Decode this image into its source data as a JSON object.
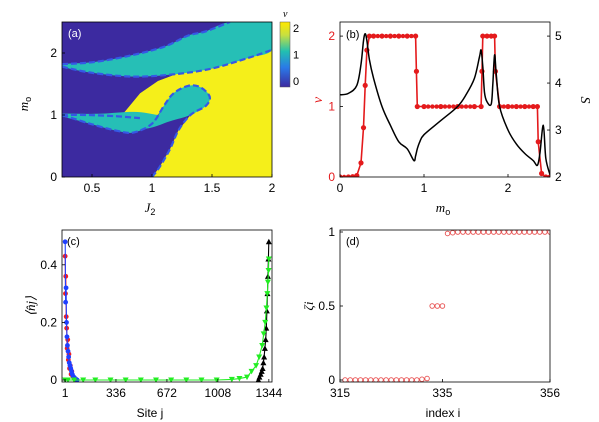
{
  "chart_data": [
    {
      "type": "heatmap",
      "panel_label": "(a)",
      "xlabel_main": "J",
      "xlabel_sub": "2",
      "ylabel_main": "m",
      "ylabel_sub": "o",
      "xlim": [
        0.25,
        2.0
      ],
      "ylim": [
        0,
        2.5
      ],
      "xticks": [
        0.5,
        1,
        1.5,
        2
      ],
      "xtick_labels": [
        "0.5",
        "1",
        "1.5",
        "2"
      ],
      "yticks": [
        0,
        1,
        2
      ],
      "ytick_labels": [
        "0",
        "1",
        "2"
      ],
      "colorbar": {
        "label": "ν",
        "ticks": [
          0,
          1,
          2
        ],
        "tick_labels": [
          "0",
          "1",
          "2"
        ],
        "colors": [
          "#3c2aa0",
          "#2aa0e8",
          "#22c0b0",
          "#ffe800"
        ]
      },
      "phase_colors": {
        "0": "#3c2aa0",
        "1": "#26bfb6",
        "2": "#f5ef1a"
      },
      "boundary_color": "#3558e6",
      "lower_region_nu1": [
        [
          0.85,
          0.72
        ],
        [
          1.0,
          0.86
        ],
        [
          1.1,
          1.15
        ],
        [
          1.18,
          1.35
        ],
        [
          1.3,
          1.47
        ],
        [
          1.4,
          1.45
        ],
        [
          1.48,
          1.3
        ],
        [
          1.45,
          1.15
        ],
        [
          1.32,
          1.0
        ],
        [
          1.22,
          0.75
        ],
        [
          1.15,
          0.45
        ],
        [
          1.06,
          0.15
        ],
        [
          1.0,
          0.0
        ]
      ],
      "lower_left_boundary": [
        [
          0.25,
          1.0
        ],
        [
          0.5,
          0.85
        ],
        [
          0.72,
          0.74
        ],
        [
          0.85,
          0.72
        ]
      ],
      "upper_region_nu1": [
        [
          0.25,
          1.78
        ],
        [
          0.5,
          1.68
        ],
        [
          0.85,
          1.62
        ],
        [
          1.2,
          1.66
        ],
        [
          1.5,
          1.75
        ],
        [
          1.8,
          1.92
        ],
        [
          2.0,
          2.05
        ],
        [
          2.0,
          2.5
        ],
        [
          1.65,
          2.5
        ],
        [
          1.45,
          2.35
        ],
        [
          1.3,
          2.28
        ],
        [
          1.1,
          2.1
        ],
        [
          0.8,
          1.95
        ],
        [
          0.5,
          1.85
        ],
        [
          0.25,
          1.82
        ]
      ]
    },
    {
      "type": "line",
      "panel_label": "(b)",
      "xlabel_main": "m",
      "xlabel_sub": "o",
      "ylabel_left": "ν",
      "ylabel_right": "S",
      "xlim": [
        0,
        2.5
      ],
      "ylim_left": [
        0,
        2.2
      ],
      "ylim_right": [
        2,
        5.3
      ],
      "xticks": [
        0,
        1,
        2
      ],
      "xtick_labels": [
        "0",
        "1",
        "2"
      ],
      "yticks_left": [
        0,
        1,
        2
      ],
      "ytick_labels_left": [
        "0",
        "1",
        "2"
      ],
      "yticks_right": [
        2,
        3,
        4,
        5
      ],
      "ytick_labels_right": [
        "2",
        "3",
        "4",
        "5"
      ],
      "series": [
        {
          "axis": "left",
          "color": "#e41a1c",
          "marker": "dot",
          "x": [
            0.0,
            0.1,
            0.2,
            0.25,
            0.28,
            0.3,
            0.32,
            0.35,
            0.4,
            0.5,
            0.6,
            0.7,
            0.8,
            0.9,
            0.91,
            0.92,
            1.0,
            1.2,
            1.4,
            1.6,
            1.68,
            1.69,
            1.7,
            1.75,
            1.8,
            1.84,
            1.85,
            1.9,
            2.0,
            2.1,
            2.2,
            2.3,
            2.35,
            2.36,
            2.4,
            2.45,
            2.5
          ],
          "y": [
            0.0,
            0.0,
            0.02,
            0.2,
            0.7,
            1.3,
            1.8,
            2.0,
            2.0,
            2.0,
            2.0,
            2.0,
            2.0,
            2.0,
            1.5,
            1.0,
            1.0,
            1.0,
            1.0,
            1.0,
            1.0,
            1.5,
            2.0,
            2.0,
            2.0,
            2.0,
            1.5,
            1.0,
            1.0,
            1.0,
            1.0,
            1.0,
            1.0,
            0.5,
            0.05,
            0.0,
            0.0
          ]
        },
        {
          "axis": "right",
          "color": "#000000",
          "marker": "none",
          "x": [
            0.0,
            0.1,
            0.2,
            0.25,
            0.28,
            0.3,
            0.32,
            0.35,
            0.4,
            0.5,
            0.6,
            0.7,
            0.8,
            0.88,
            0.9,
            0.92,
            0.95,
            1.0,
            1.2,
            1.4,
            1.5,
            1.6,
            1.66,
            1.68,
            1.7,
            1.72,
            1.75,
            1.8,
            1.82,
            1.84,
            1.86,
            1.9,
            2.0,
            2.1,
            2.2,
            2.3,
            2.35,
            2.38,
            2.42,
            2.45,
            2.5
          ],
          "y": [
            3.75,
            3.78,
            3.95,
            4.4,
            4.9,
            5.05,
            4.9,
            4.5,
            4.1,
            3.5,
            3.1,
            2.75,
            2.6,
            2.35,
            2.45,
            2.6,
            2.75,
            2.9,
            3.2,
            3.5,
            3.75,
            4.1,
            4.55,
            4.7,
            4.35,
            3.8,
            3.6,
            3.55,
            4.0,
            4.6,
            4.2,
            3.5,
            3.0,
            2.7,
            2.5,
            2.35,
            2.25,
            2.5,
            3.1,
            2.4,
            2.05
          ]
        }
      ]
    },
    {
      "type": "line",
      "panel_label": "(c)",
      "xlabel": "Site j",
      "ylabel": "⟨n̂j⟩",
      "xlim": [
        0,
        1345
      ],
      "ylim": [
        0,
        0.5
      ],
      "xticks": [
        1,
        336,
        672,
        1008,
        1344
      ],
      "xtick_labels": [
        "1",
        "336",
        "672",
        "1008",
        "1344"
      ],
      "yticks": [
        0,
        0.2,
        0.4
      ],
      "ytick_labels": [
        "0",
        "0.2",
        "0.4"
      ],
      "series": [
        {
          "color": "#ee1c25",
          "marker": "dot",
          "x": [
            1,
            3,
            5,
            8,
            11,
            14,
            18,
            22,
            26,
            30,
            35,
            40,
            45,
            50,
            55,
            60,
            70
          ],
          "y": [
            0.43,
            0.3,
            0.36,
            0.22,
            0.18,
            0.11,
            0.14,
            0.07,
            0.09,
            0.04,
            0.05,
            0.02,
            0.03,
            0.015,
            0.01,
            0.005,
            0.0
          ]
        },
        {
          "color": "#1f3fff",
          "marker": "dot",
          "x": [
            1,
            4,
            7,
            10,
            13,
            16,
            20,
            24,
            28,
            33,
            38,
            43,
            48,
            55,
            62,
            70,
            80
          ],
          "y": [
            0.48,
            0.27,
            0.32,
            0.2,
            0.15,
            0.12,
            0.1,
            0.08,
            0.06,
            0.05,
            0.04,
            0.03,
            0.02,
            0.012,
            0.008,
            0.004,
            0.0
          ]
        },
        {
          "color": "#000000",
          "marker": "triangle",
          "x": [
            1344,
            1341,
            1338,
            1335,
            1331,
            1327,
            1323,
            1318,
            1313,
            1308,
            1303,
            1297,
            1290,
            1282,
            1275
          ],
          "y": [
            0.48,
            0.42,
            0.36,
            0.3,
            0.24,
            0.18,
            0.14,
            0.11,
            0.08,
            0.06,
            0.04,
            0.03,
            0.02,
            0.01,
            0.0
          ]
        },
        {
          "color": "#22ee22",
          "marker": "triangle-down",
          "x": [
            1,
            20,
            60,
            120,
            200,
            300,
            400,
            500,
            600,
            700,
            800,
            900,
            1000,
            1100,
            1150,
            1200,
            1230,
            1260,
            1280,
            1300,
            1310,
            1320,
            1328,
            1334,
            1338,
            1342,
            1344
          ],
          "y": [
            0.0,
            0.0,
            0.0,
            0.0,
            0.0,
            0.0,
            0.0,
            0.0,
            0.0,
            0.0,
            0.0,
            0.0,
            0.0,
            0.002,
            0.005,
            0.01,
            0.03,
            0.05,
            0.08,
            0.12,
            0.16,
            0.2,
            0.25,
            0.3,
            0.34,
            0.38,
            0.42
          ]
        }
      ]
    },
    {
      "type": "scatter",
      "panel_label": "(d)",
      "xlabel": "index i",
      "ylabel": "ζi",
      "xlim": [
        315,
        356
      ],
      "ylim": [
        0,
        1
      ],
      "xticks": [
        315,
        335,
        356
      ],
      "xtick_labels": [
        "315",
        "335",
        "356"
      ],
      "yticks": [
        0,
        0.5,
        1
      ],
      "ytick_labels": [
        "0",
        "0.5",
        "1"
      ],
      "series": [
        {
          "color": "#e85050",
          "marker": "open-circle",
          "x": [
            316,
            317,
            318,
            319,
            320,
            321,
            322,
            323,
            324,
            325,
            326,
            327,
            328,
            329,
            330,
            331,
            332,
            333,
            334,
            335,
            336,
            337,
            338,
            339,
            340,
            341,
            342,
            343,
            344,
            345,
            346,
            347,
            348,
            349,
            350,
            351,
            352,
            353,
            354,
            355,
            356
          ],
          "y": [
            0.0,
            0.0,
            0.0,
            0.0,
            0.0,
            0.0,
            0.0,
            0.0,
            0.0,
            0.0,
            0.0,
            0.0,
            0.0,
            0.0,
            0.0,
            0.005,
            0.01,
            0.5,
            0.5,
            0.5,
            0.99,
            0.995,
            1.0,
            1.0,
            1.0,
            1.0,
            1.0,
            1.0,
            1.0,
            1.0,
            1.0,
            1.0,
            1.0,
            1.0,
            1.0,
            1.0,
            1.0,
            1.0,
            1.0,
            1.0,
            1.0
          ]
        }
      ]
    }
  ]
}
